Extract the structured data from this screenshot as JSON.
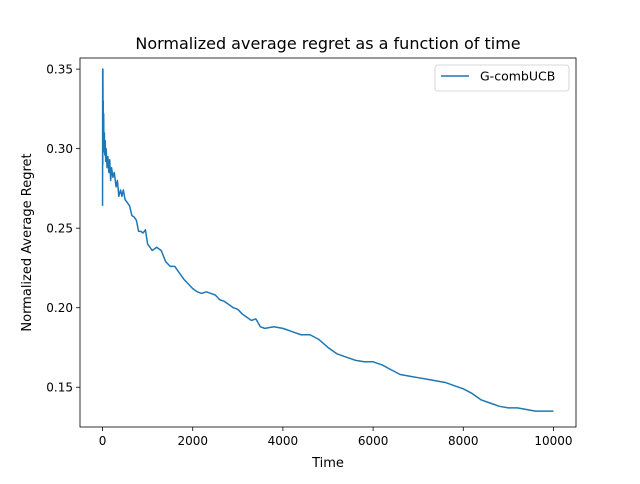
{
  "chart_data": {
    "type": "line",
    "title": "Normalized average regret as a function of time",
    "xlabel": "Time",
    "ylabel": "Normalized Average Regret",
    "xlim": [
      -500,
      10500
    ],
    "ylim": [
      0.125,
      0.357
    ],
    "xticks": [
      0,
      2000,
      4000,
      6000,
      8000,
      10000
    ],
    "xtick_labels": [
      "0",
      "2000",
      "4000",
      "6000",
      "8000",
      "10000"
    ],
    "yticks": [
      0.15,
      0.2,
      0.25,
      0.3,
      0.35
    ],
    "ytick_labels": [
      "0.15",
      "0.20",
      "0.25",
      "0.30",
      "0.35"
    ],
    "grid": false,
    "legend": {
      "position": "upper right"
    },
    "series": [
      {
        "name": "G-combUCB",
        "color": "#1f77b4",
        "x": [
          0,
          3,
          5,
          8,
          12,
          15,
          20,
          25,
          30,
          40,
          50,
          60,
          70,
          80,
          100,
          120,
          140,
          160,
          180,
          200,
          230,
          260,
          300,
          330,
          360,
          400,
          430,
          460,
          500,
          550,
          600,
          650,
          700,
          750,
          800,
          850,
          900,
          950,
          1000,
          1100,
          1200,
          1300,
          1400,
          1500,
          1600,
          1700,
          1800,
          1900,
          2000,
          2100,
          2200,
          2300,
          2400,
          2500,
          2600,
          2700,
          2800,
          2900,
          3000,
          3100,
          3200,
          3300,
          3400,
          3500,
          3600,
          3800,
          4000,
          4200,
          4400,
          4600,
          4800,
          5000,
          5200,
          5400,
          5600,
          5800,
          6000,
          6200,
          6400,
          6600,
          6800,
          7000,
          7200,
          7400,
          7600,
          7800,
          8000,
          8200,
          8400,
          8600,
          8800,
          9000,
          9200,
          9400,
          9600,
          9800,
          10000
        ],
        "y": [
          0.264,
          0.35,
          0.29,
          0.35,
          0.305,
          0.33,
          0.298,
          0.322,
          0.3,
          0.31,
          0.296,
          0.305,
          0.292,
          0.3,
          0.288,
          0.295,
          0.285,
          0.293,
          0.28,
          0.288,
          0.282,
          0.285,
          0.276,
          0.28,
          0.27,
          0.274,
          0.27,
          0.274,
          0.268,
          0.266,
          0.264,
          0.258,
          0.257,
          0.255,
          0.248,
          0.248,
          0.247,
          0.249,
          0.24,
          0.236,
          0.238,
          0.236,
          0.229,
          0.226,
          0.226,
          0.222,
          0.218,
          0.215,
          0.212,
          0.21,
          0.209,
          0.21,
          0.209,
          0.208,
          0.205,
          0.204,
          0.202,
          0.2,
          0.199,
          0.196,
          0.194,
          0.192,
          0.193,
          0.188,
          0.187,
          0.188,
          0.187,
          0.185,
          0.183,
          0.183,
          0.18,
          0.175,
          0.171,
          0.169,
          0.167,
          0.166,
          0.166,
          0.164,
          0.161,
          0.158,
          0.157,
          0.156,
          0.155,
          0.154,
          0.153,
          0.151,
          0.149,
          0.146,
          0.142,
          0.14,
          0.138,
          0.137,
          0.137,
          0.136,
          0.135,
          0.135,
          0.135
        ]
      }
    ]
  }
}
